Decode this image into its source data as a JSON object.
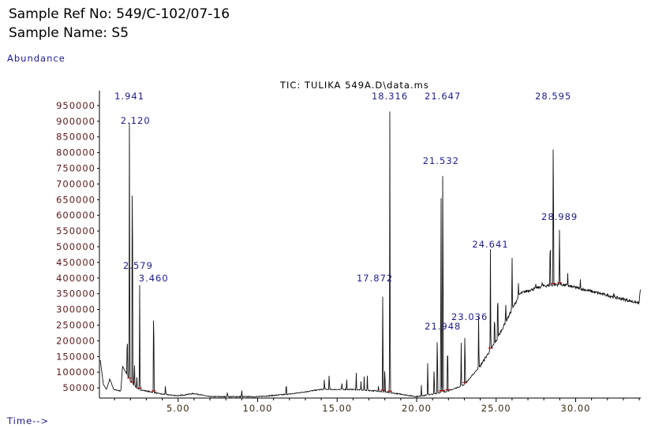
{
  "header": {
    "sample_ref": "Sample Ref No: 549/C-102/07-16",
    "sample_name": "Sample Name: S5"
  },
  "colors": {
    "ytick": "#5a1a1a",
    "peak_label": "#1c1c8c",
    "ylabel": "#1c1c8c",
    "trace": "#111111",
    "integration": "#b00000",
    "xtick": "#3a2a10"
  },
  "chart_data": {
    "type": "line",
    "title": "TIC: TULIKA 549A.D\\data.ms",
    "xlabel": "Time-->",
    "ylabel": "Abundance",
    "xlim": [
      0,
      34.1
    ],
    "ylim": [
      17500,
      1000000
    ],
    "grid": false,
    "x_ticks": [
      5,
      10,
      15,
      20,
      25,
      30
    ],
    "x_tick_labels": [
      "5.00",
      "10.00",
      "15.00",
      "20.00",
      "25.00",
      "30.00"
    ],
    "y_ticks": [
      950000,
      900000,
      850000,
      800000,
      750000,
      700000,
      650000,
      600000,
      550000,
      500000,
      450000,
      400000,
      350000,
      300000,
      250000,
      200000,
      150000,
      100000,
      50000
    ],
    "y_tick_labels": [
      "950000",
      "900000",
      "850000",
      "800000",
      "750000",
      "700000",
      "650000",
      "600000",
      "550000",
      "500000",
      "450000",
      "400000",
      "350000",
      "300000",
      "250000",
      "200000",
      "150000",
      "100000",
      "50000"
    ],
    "baseline": [
      [
        0,
        180000
      ],
      [
        0.3,
        60000
      ],
      [
        0.5,
        45000
      ],
      [
        0.7,
        78000
      ],
      [
        0.95,
        45000
      ],
      [
        1.4,
        40000
      ],
      [
        1.5,
        120000
      ],
      [
        2.0,
        70000
      ],
      [
        2.5,
        45000
      ],
      [
        3,
        40000
      ],
      [
        4,
        30000
      ],
      [
        5,
        25000
      ],
      [
        6,
        32000
      ],
      [
        7,
        22000
      ],
      [
        10,
        22000
      ],
      [
        12,
        30000
      ],
      [
        14,
        45000
      ],
      [
        16,
        45000
      ],
      [
        17.5,
        40000
      ],
      [
        19,
        30000
      ],
      [
        20,
        22000
      ],
      [
        21,
        30000
      ],
      [
        22,
        40000
      ],
      [
        23,
        60000
      ],
      [
        24,
        120000
      ],
      [
        25,
        200000
      ],
      [
        26,
        300000
      ],
      [
        26.5,
        350000
      ],
      [
        27,
        360000
      ],
      [
        28,
        375000
      ],
      [
        29,
        380000
      ],
      [
        30,
        370000
      ],
      [
        32,
        345000
      ],
      [
        34,
        320000
      ],
      [
        34.05,
        360000
      ]
    ],
    "labeled_peaks": [
      {
        "rt": 1.941,
        "label": "1.941",
        "abundance": 985000
      },
      {
        "rt": 2.12,
        "label": "2.120",
        "abundance": 960000
      },
      {
        "rt": 2.579,
        "label": "2.579",
        "abundance": 380000
      },
      {
        "rt": 3.46,
        "label": "3.460",
        "abundance": 380000
      },
      {
        "rt": 17.872,
        "label": "17.872",
        "abundance": 380000
      },
      {
        "rt": 18.316,
        "label": "18.316",
        "abundance": 965000
      },
      {
        "rt": 21.532,
        "label": "21.532",
        "abundance": 750000
      },
      {
        "rt": 21.647,
        "label": "21.647",
        "abundance": 965000
      },
      {
        "rt": 21.948,
        "label": "21.948",
        "abundance": 230000
      },
      {
        "rt": 23.036,
        "label": "23.036",
        "abundance": 255000
      },
      {
        "rt": 24.641,
        "label": "24.641",
        "abundance": 490000
      },
      {
        "rt": 28.595,
        "label": "28.595",
        "abundance": 965000
      },
      {
        "rt": 28.989,
        "label": "28.989",
        "abundance": 580000
      }
    ],
    "minor_peaks": [
      [
        1.8,
        250000
      ],
      [
        2.25,
        140000
      ],
      [
        2.4,
        90000
      ],
      [
        4.2,
        60000
      ],
      [
        8.1,
        40000
      ],
      [
        9.0,
        45000
      ],
      [
        11.8,
        70000
      ],
      [
        14.2,
        80000
      ],
      [
        14.5,
        100000
      ],
      [
        15.3,
        70000
      ],
      [
        15.6,
        85000
      ],
      [
        16.2,
        100000
      ],
      [
        16.5,
        70000
      ],
      [
        16.7,
        85000
      ],
      [
        16.9,
        90000
      ],
      [
        17.6,
        60000
      ],
      [
        18.0,
        130000
      ],
      [
        20.3,
        60000
      ],
      [
        20.7,
        140000
      ],
      [
        21.1,
        120000
      ],
      [
        21.3,
        260000
      ],
      [
        22.8,
        200000
      ],
      [
        23.9,
        290000
      ],
      [
        24.9,
        300000
      ],
      [
        25.1,
        390000
      ],
      [
        25.6,
        330000
      ],
      [
        26.0,
        480000
      ],
      [
        26.4,
        380000
      ],
      [
        27.5,
        380000
      ],
      [
        27.9,
        390000
      ],
      [
        28.4,
        560000
      ],
      [
        29.5,
        420000
      ],
      [
        30.3,
        395000
      ],
      [
        32.4,
        350000
      ],
      [
        34.05,
        360000
      ]
    ]
  }
}
